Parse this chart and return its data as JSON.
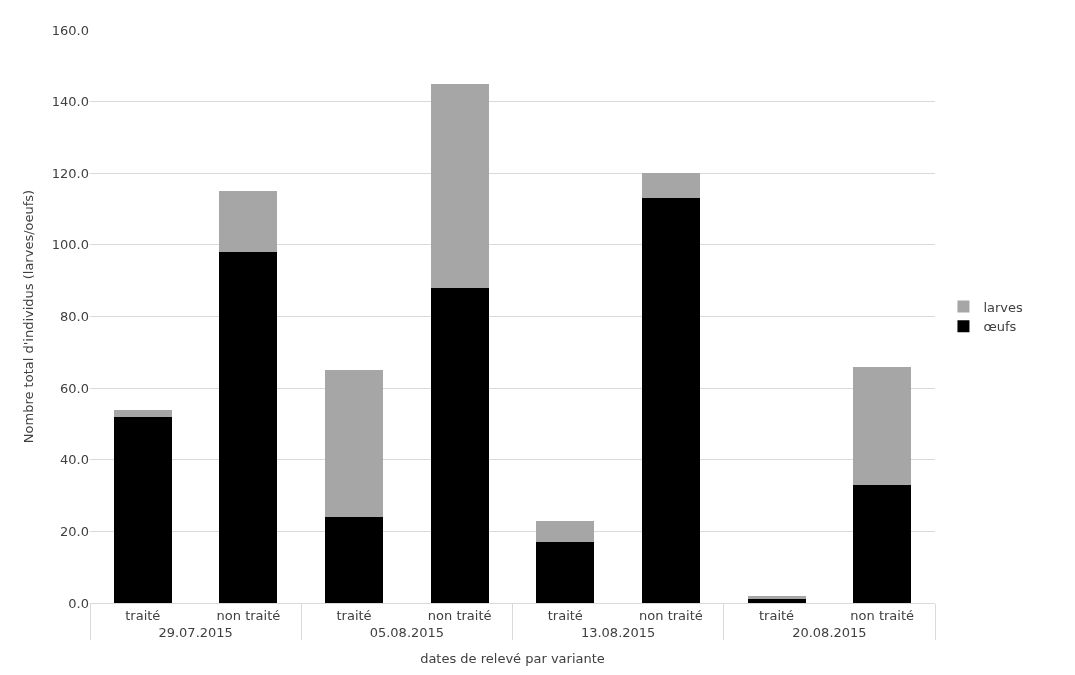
{
  "chart_data": {
    "type": "bar",
    "stacked": true,
    "xlabel": "dates de relevé par variante",
    "ylabel": "Nombre total d'individus (larves/oeufs)",
    "categories": [
      "traité",
      "non traité",
      "traité",
      "non traité",
      "traité",
      "non traité",
      "traité",
      "non traité"
    ],
    "annotations": [
      "29.07.2015",
      "05.08.2015",
      "13.08.2015",
      "20.08.2015"
    ],
    "series": [
      {
        "name": "œufs",
        "color": "#000000",
        "values": [
          52,
          98,
          24,
          88,
          17,
          113,
          1,
          33
        ]
      },
      {
        "name": "larves",
        "color": "#a6a6a6",
        "values": [
          2,
          17,
          41,
          57,
          6,
          7,
          1,
          33
        ]
      }
    ],
    "ylim": [
      0,
      160
    ],
    "yticks": [
      {
        "value": 0,
        "label": "0.0"
      },
      {
        "value": 20,
        "label": "20.0"
      },
      {
        "value": 40,
        "label": "40.0"
      },
      {
        "value": 60,
        "label": "60.0"
      },
      {
        "value": 80,
        "label": "80.0"
      },
      {
        "value": 100,
        "label": "100.0"
      },
      {
        "value": 120,
        "label": "120.0"
      },
      {
        "value": 140,
        "label": "140.0"
      },
      {
        "value": 160,
        "label": "160.0"
      }
    ],
    "grid": "y",
    "legend": "right"
  }
}
